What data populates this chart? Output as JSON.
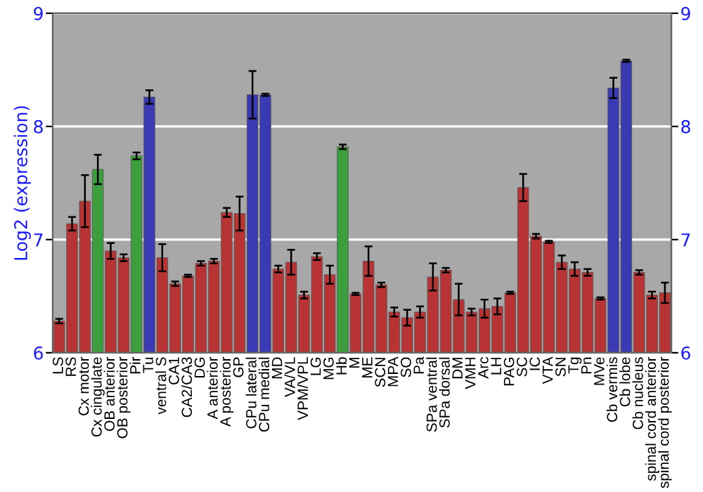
{
  "chart_data": {
    "type": "bar",
    "ylabel": "Log2 (expression)",
    "categories": [
      "LS",
      "RS",
      "Cx motor",
      "Cx cingulate",
      "OB anterior",
      "OB posterior",
      "Pir",
      "Tu",
      "ventral S",
      "CA1",
      "CA2/CA3",
      "DG",
      "A anterior",
      "A posterior",
      "GP",
      "CPu lateral",
      "CPu medial",
      "MD",
      "VA/VL",
      "VPM/VPL",
      "LG",
      "MG",
      "Hb",
      "M",
      "ME",
      "SCN",
      "MPA",
      "SO",
      "Pa",
      "SPa ventral",
      "SPa dorsal",
      "DM",
      "VMH",
      "Arc",
      "LH",
      "PAG",
      "SC",
      "IC",
      "VTA",
      "SN",
      "Tg",
      "Pn",
      "MVe",
      "Cb vermis",
      "Cb lobe",
      "Cb nucleus",
      "spinal cord anterior",
      "spinal cord posterior"
    ],
    "values": [
      6.28,
      7.14,
      7.34,
      7.62,
      6.9,
      6.84,
      7.74,
      8.26,
      6.84,
      6.61,
      6.68,
      6.79,
      6.81,
      7.24,
      7.23,
      8.28,
      8.28,
      6.74,
      6.8,
      6.51,
      6.85,
      6.69,
      7.82,
      6.52,
      6.81,
      6.6,
      6.36,
      6.31,
      6.36,
      6.67,
      6.73,
      6.47,
      6.36,
      6.39,
      6.41,
      6.53,
      7.46,
      7.03,
      6.98,
      6.8,
      6.74,
      6.71,
      6.48,
      8.34,
      8.58,
      6.71,
      6.51,
      6.53
    ],
    "errors": [
      0.02,
      0.06,
      0.23,
      0.13,
      0.07,
      0.03,
      0.03,
      0.06,
      0.12,
      0.02,
      0.01,
      0.02,
      0.02,
      0.04,
      0.15,
      0.21,
      0.01,
      0.03,
      0.11,
      0.03,
      0.03,
      0.08,
      0.02,
      0.01,
      0.13,
      0.02,
      0.04,
      0.07,
      0.05,
      0.12,
      0.02,
      0.14,
      0.03,
      0.08,
      0.07,
      0.01,
      0.12,
      0.02,
      0.01,
      0.06,
      0.06,
      0.03,
      0.01,
      0.09,
      0.01,
      0.02,
      0.03,
      0.09
    ],
    "colors": [
      "#b83434",
      "#b83434",
      "#b83434",
      "#3c9e3c",
      "#b83434",
      "#b83434",
      "#3c9e3c",
      "#3a3ab4",
      "#b83434",
      "#b83434",
      "#b83434",
      "#b83434",
      "#b83434",
      "#b83434",
      "#b83434",
      "#3a3ab4",
      "#3a3ab4",
      "#b83434",
      "#b83434",
      "#b83434",
      "#b83434",
      "#b83434",
      "#3c9e3c",
      "#b83434",
      "#b83434",
      "#b83434",
      "#b83434",
      "#b83434",
      "#b83434",
      "#b83434",
      "#b83434",
      "#b83434",
      "#b83434",
      "#b83434",
      "#b83434",
      "#b83434",
      "#b83434",
      "#b83434",
      "#b83434",
      "#b83434",
      "#b83434",
      "#b83434",
      "#b83434",
      "#3a3ab4",
      "#3a3ab4",
      "#b83434",
      "#b83434",
      "#b83434"
    ],
    "ylim": [
      6,
      9
    ],
    "yticks": [
      6,
      7,
      8,
      9
    ],
    "y2lim": [
      6,
      9
    ],
    "y2ticks": [
      6,
      7,
      8,
      9
    ],
    "grid": "y"
  }
}
